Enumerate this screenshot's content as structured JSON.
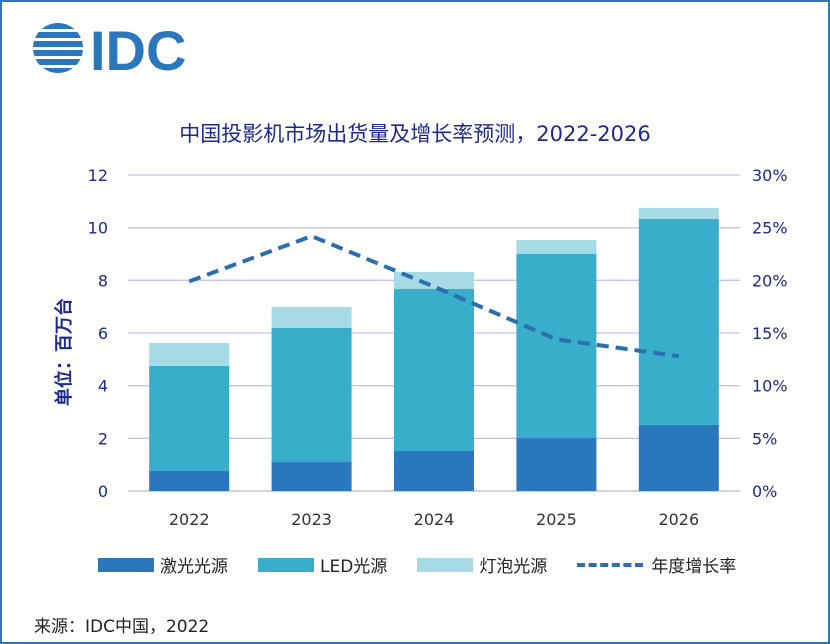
{
  "logo_text": "IDC",
  "chart_data": {
    "type": "bar",
    "stacked": true,
    "title": "中国投影机市场出货量及增长率预测，2022-2026",
    "ylabel": "单位：百万台",
    "categories": [
      "2022",
      "2023",
      "2024",
      "2025",
      "2026"
    ],
    "ylim": [
      0,
      12
    ],
    "yticks": [
      "0",
      "2",
      "4",
      "6",
      "8",
      "10",
      "12"
    ],
    "y2lim": [
      0,
      30
    ],
    "y2ticks": [
      "0%",
      "5%",
      "10%",
      "15%",
      "20%",
      "25%",
      "30%"
    ],
    "grid": true,
    "legend_position": "bottom",
    "series": [
      {
        "name": "激光光源",
        "values": [
          0.76,
          1.1,
          1.52,
          2.01,
          2.51
        ],
        "color": "#2a77bd"
      },
      {
        "name": "LED光源",
        "values": [
          3.99,
          5.09,
          6.15,
          6.99,
          7.82
        ],
        "color": "#38aecb"
      },
      {
        "name": "灯泡光源",
        "values": [
          0.87,
          0.8,
          0.65,
          0.53,
          0.42
        ],
        "color": "#a6dbe6"
      }
    ],
    "line_series": {
      "name": "年度增长率",
      "axis": "right",
      "values": [
        19.9,
        24.2,
        19.4,
        14.4,
        12.8
      ],
      "color": "#2a6fb0",
      "style": "dashed"
    }
  },
  "source": "来源：IDC中国，2022"
}
